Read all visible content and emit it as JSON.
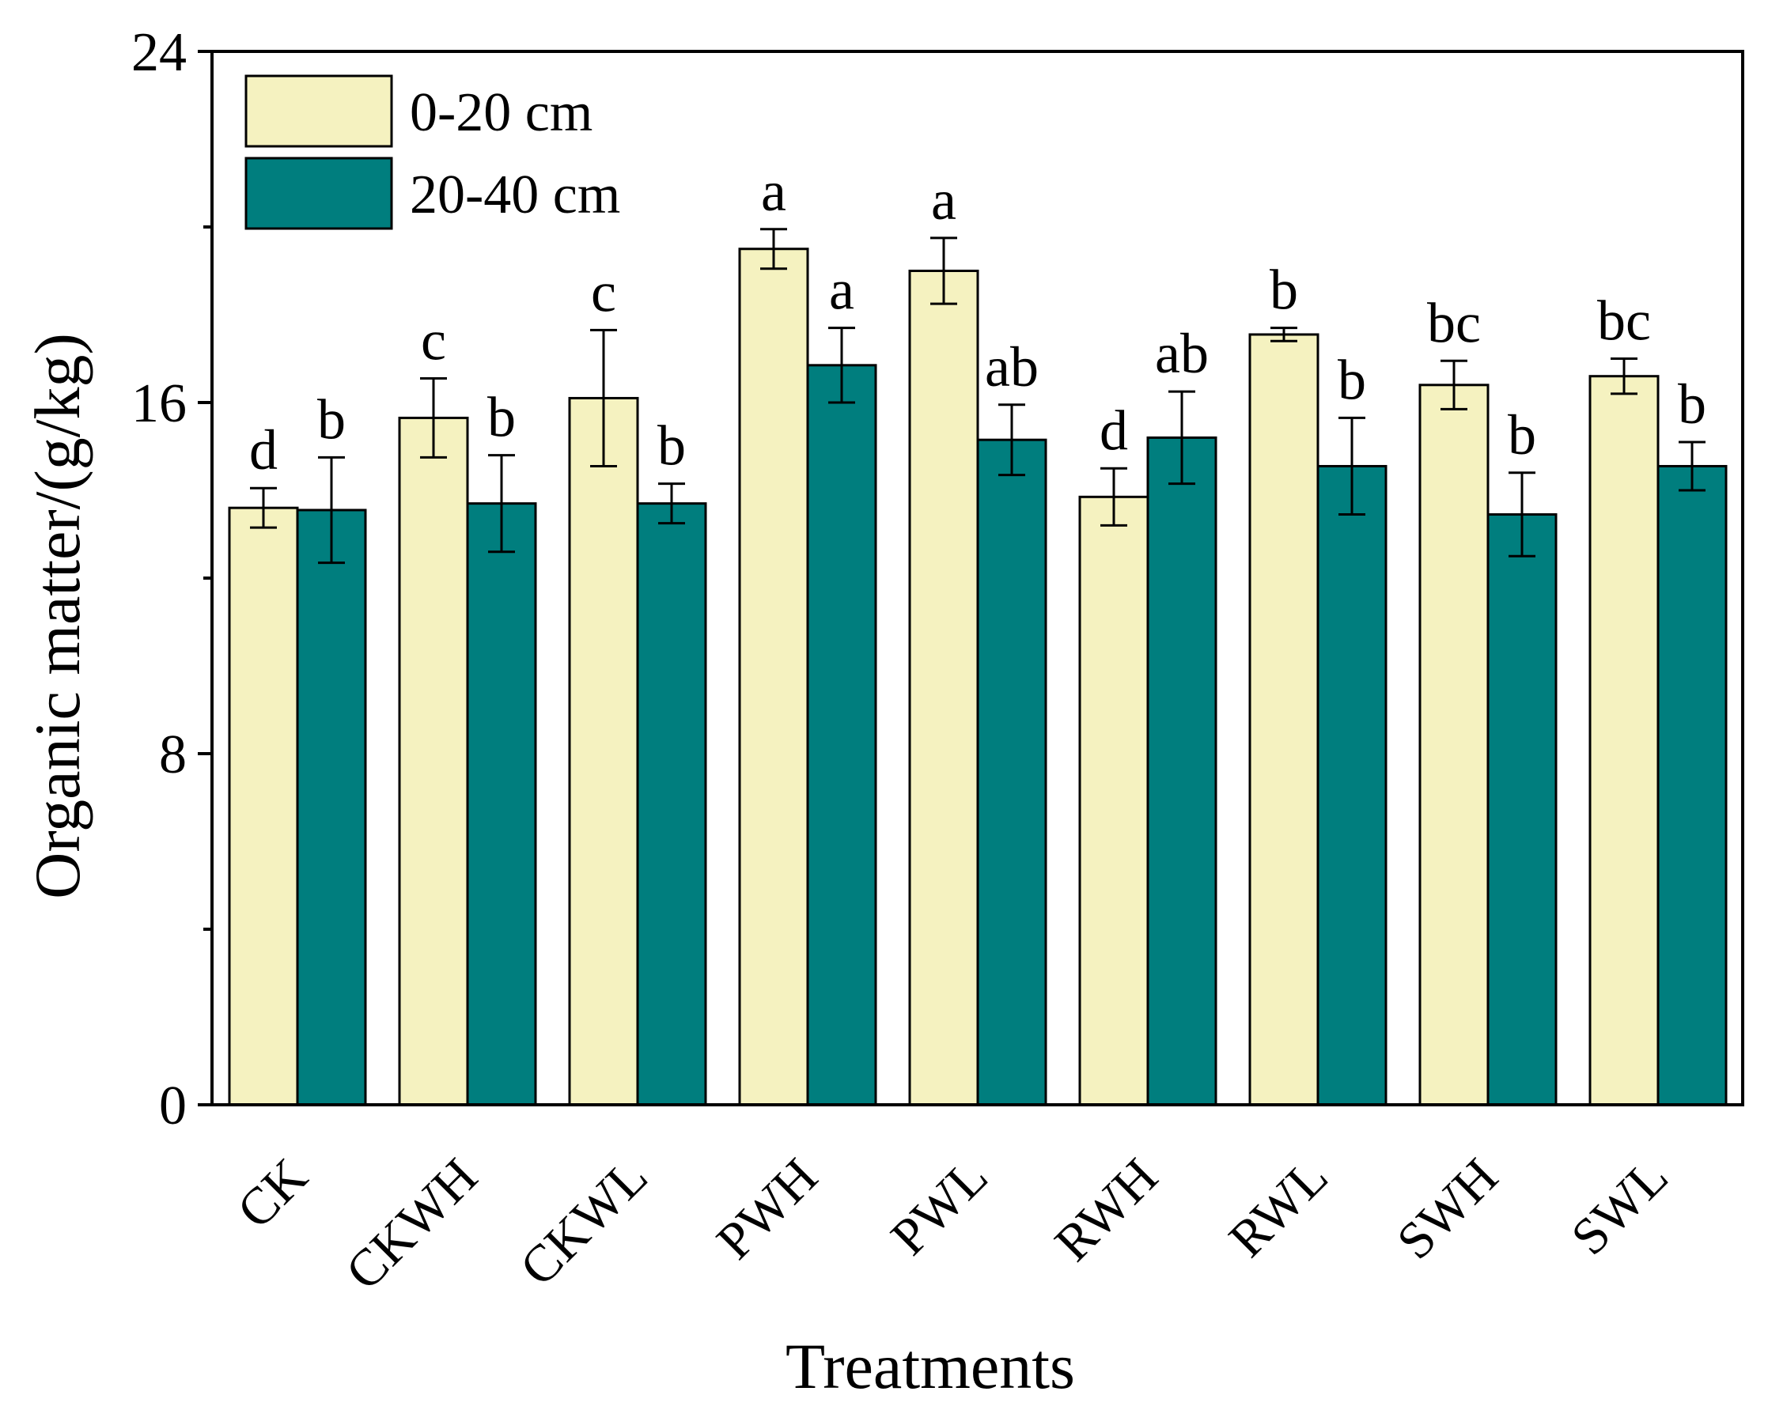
{
  "chart_data": {
    "type": "bar",
    "title": "",
    "xlabel": "Treatments",
    "ylabel": "Organic matter/(g/kg)",
    "ylim": [
      0,
      24
    ],
    "yticks": [
      0,
      8,
      16,
      24
    ],
    "y_minor_ticks": [
      4,
      12,
      20
    ],
    "grid": false,
    "legend_position": "top-left",
    "categories": [
      "CK",
      "CKWH",
      "CKWL",
      "PWH",
      "PWL",
      "RWH",
      "RWL",
      "SWH",
      "SWL"
    ],
    "series": [
      {
        "name": "0-20 cm",
        "color": "#F5F2C0",
        "values": [
          13.6,
          15.65,
          16.1,
          19.5,
          19.0,
          13.85,
          17.55,
          16.4,
          16.6
        ],
        "errors": [
          0.45,
          0.9,
          1.55,
          0.45,
          0.75,
          0.65,
          0.15,
          0.55,
          0.4
        ],
        "letters": [
          "d",
          "c",
          "c",
          "a",
          "a",
          "d",
          "b",
          "bc",
          "bc"
        ]
      },
      {
        "name": "20-40 cm",
        "color": "#007E7E",
        "values": [
          13.55,
          13.7,
          13.7,
          16.85,
          15.15,
          15.2,
          14.55,
          13.45,
          14.55
        ],
        "errors": [
          1.2,
          1.1,
          0.45,
          0.85,
          0.8,
          1.05,
          1.1,
          0.95,
          0.55
        ],
        "letters": [
          "b",
          "b",
          "b",
          "a",
          "ab",
          "ab",
          "b",
          "b",
          "b"
        ]
      }
    ]
  }
}
